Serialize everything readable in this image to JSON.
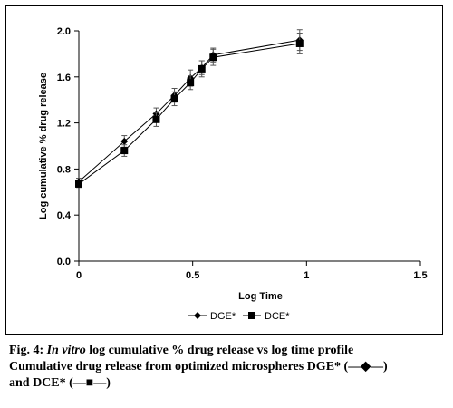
{
  "chart_data": {
    "type": "line",
    "xlabel": "Log Time",
    "ylabel": "Log cumulative % drug release",
    "xlim": [
      0,
      1.5
    ],
    "ylim": [
      0,
      2.0
    ],
    "x_ticks": [
      "0",
      "0.5",
      "1",
      "1.5"
    ],
    "x_tick_values": [
      0,
      0.5,
      1,
      1.5
    ],
    "y_ticks": [
      "0.0",
      "0.4",
      "0.8",
      "1.2",
      "1.6",
      "2.0"
    ],
    "y_tick_values": [
      0,
      0.4,
      0.8,
      1.2,
      1.6,
      2.0
    ],
    "grid": false,
    "legend_position": "bottom",
    "series": [
      {
        "name": "DGE*",
        "marker": "diamond",
        "color": "#000000",
        "x": [
          0,
          0.2,
          0.34,
          0.42,
          0.49,
          0.54,
          0.59,
          0.97
        ],
        "y": [
          0.69,
          1.04,
          1.28,
          1.44,
          1.59,
          1.68,
          1.79,
          1.92
        ],
        "err": [
          0.03,
          0.05,
          0.05,
          0.06,
          0.07,
          0.06,
          0.06,
          0.09
        ]
      },
      {
        "name": "DCE*",
        "marker": "square",
        "color": "#000000",
        "x": [
          0,
          0.2,
          0.34,
          0.42,
          0.49,
          0.54,
          0.59,
          0.97
        ],
        "y": [
          0.67,
          0.96,
          1.23,
          1.41,
          1.55,
          1.67,
          1.77,
          1.89
        ],
        "err": [
          0.03,
          0.05,
          0.06,
          0.06,
          0.06,
          0.07,
          0.07,
          0.09
        ]
      }
    ]
  },
  "caption": {
    "fig_label": "Fig. 4: ",
    "italic_part": "In vitro",
    "line1_rest": " log cumulative % drug release vs log time profile",
    "line2": "Cumulative drug release from optimized microspheres DGE* (—◆—)",
    "line3": "and DCE* (—■—)"
  }
}
